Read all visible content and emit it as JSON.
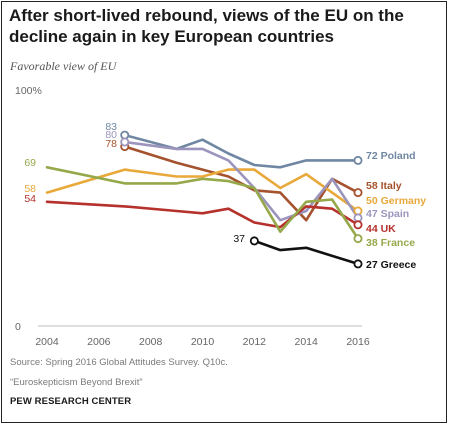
{
  "title": "After short-lived rebound, views of the EU on the decline again in key European countries",
  "subtitle": "Favorable view of EU",
  "source": "Source: Spring 2016 Global Attitudes Survey. Q10c.",
  "report": "“Euroskepticism Beyond Brexit”",
  "brand": "PEW RESEARCH CENTER",
  "chart_data": {
    "type": "line",
    "title": "Favorable view of EU",
    "xlim": [
      2004,
      2016
    ],
    "ylim": [
      0,
      100
    ],
    "x_ticks": [
      "2004",
      "2006",
      "2008",
      "2010",
      "2012",
      "2014",
      "2016"
    ],
    "y_ticks": [
      "100%",
      "0"
    ],
    "grid": false,
    "legend": "labels at line ends",
    "series": [
      {
        "name": "Poland",
        "color": "#6f87a2",
        "x": [
          2007,
          2009,
          2010,
          2011,
          2012,
          2013,
          2014,
          2015,
          2016
        ],
        "y": [
          83,
          77,
          81,
          75,
          70,
          69,
          72,
          72,
          72
        ],
        "start_label": "83",
        "end_label": "72 Poland"
      },
      {
        "name": "Italy",
        "color": "#a5522e",
        "x": [
          2007,
          2009,
          2010,
          2011,
          2012,
          2013,
          2014,
          2015,
          2016
        ],
        "y": [
          78,
          71,
          68,
          65,
          59,
          58,
          46,
          64,
          58
        ],
        "start_label": "78",
        "end_label": "58 Italy"
      },
      {
        "name": "Germany",
        "color": "#e9a83a",
        "x": [
          2004,
          2007,
          2009,
          2010,
          2011,
          2012,
          2013,
          2014,
          2015,
          2016
        ],
        "y": [
          58,
          68,
          65,
          65,
          68,
          68,
          60,
          66,
          58,
          50
        ],
        "start_label": "58",
        "end_label": "50 Germany"
      },
      {
        "name": "Spain",
        "color": "#9b95bd",
        "x": [
          2007,
          2009,
          2010,
          2011,
          2012,
          2013,
          2014,
          2015,
          2016
        ],
        "y": [
          80,
          77,
          77,
          72,
          60,
          46,
          50,
          64,
          47
        ],
        "start_label": "80",
        "end_label": "47 Spain"
      },
      {
        "name": "UK",
        "color": "#b5312c",
        "x": [
          2004,
          2007,
          2009,
          2010,
          2011,
          2012,
          2013,
          2014,
          2015,
          2016
        ],
        "y": [
          54,
          52,
          50,
          49,
          51,
          45,
          43,
          52,
          51,
          44
        ],
        "start_label": "54",
        "end_label": "44 UK"
      },
      {
        "name": "France",
        "color": "#95a84a",
        "x": [
          2004,
          2007,
          2009,
          2010,
          2011,
          2012,
          2013,
          2014,
          2015,
          2016
        ],
        "y": [
          69,
          62,
          62,
          64,
          63,
          60,
          41,
          54,
          55,
          38
        ],
        "start_label": "69",
        "end_label": "38 France"
      },
      {
        "name": "Greece",
        "color": "#111111",
        "x": [
          2012,
          2013,
          2014,
          2016
        ],
        "y": [
          37,
          33,
          34,
          27
        ],
        "start_label": "37",
        "end_label": "27 Greece"
      }
    ]
  }
}
